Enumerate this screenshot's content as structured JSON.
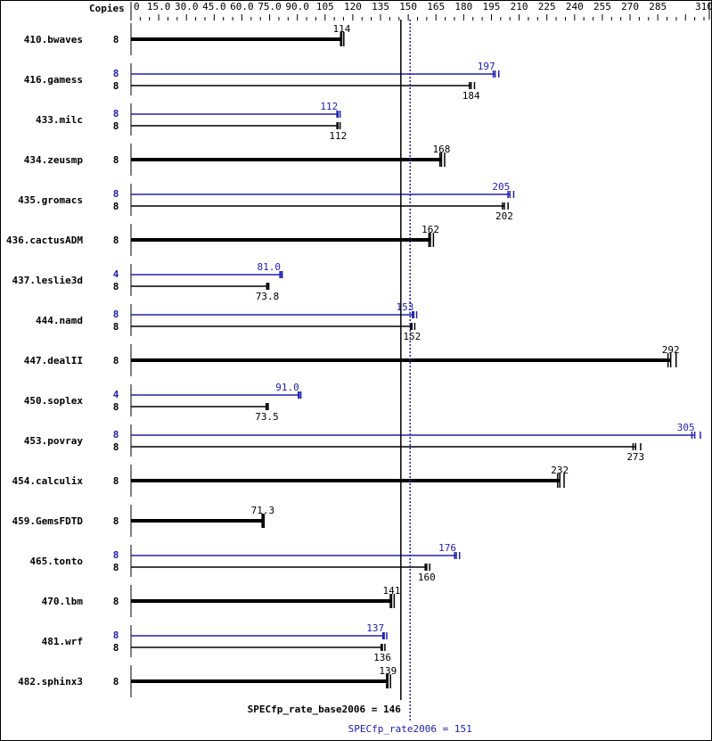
{
  "chart_data": {
    "type": "bar",
    "orientation": "horizontal",
    "copies_header": "Copies",
    "xlim": [
      0,
      310
    ],
    "x_ticks": [
      "0",
      "15.0",
      "30.0",
      "45.0",
      "60.0",
      "75.0",
      "90.0",
      "105",
      "120",
      "135",
      "150",
      "165",
      "180",
      "195",
      "210",
      "225",
      "240",
      "255",
      "270",
      "285",
      "310"
    ],
    "x_tick_values": [
      0,
      15,
      30,
      45,
      60,
      75,
      90,
      105,
      120,
      135,
      150,
      165,
      180,
      195,
      210,
      225,
      240,
      255,
      270,
      285,
      310
    ],
    "colors": {
      "base": "#000000",
      "peak": "#2020b0"
    },
    "benchmarks": [
      {
        "name": "410.bwaves",
        "base_copies": "8",
        "base": 114,
        "base_label": "114"
      },
      {
        "name": "416.gamess",
        "peak_copies": "8",
        "peak": 197,
        "peak_label": "197",
        "base_copies": "8",
        "base": 184,
        "base_label": "184"
      },
      {
        "name": "433.milc",
        "peak_copies": "8",
        "peak": 112,
        "peak_label": "112",
        "base_copies": "8",
        "base": 112,
        "base_label": "112"
      },
      {
        "name": "434.zeusmp",
        "base_copies": "8",
        "base": 168,
        "base_label": "168"
      },
      {
        "name": "435.gromacs",
        "peak_copies": "8",
        "peak": 205,
        "peak_label": "205",
        "base_copies": "8",
        "base": 202,
        "base_label": "202"
      },
      {
        "name": "436.cactusADM",
        "base_copies": "8",
        "base": 162,
        "base_label": "162"
      },
      {
        "name": "437.leslie3d",
        "peak_copies": "4",
        "peak": 81.0,
        "peak_label": "81.0",
        "base_copies": "8",
        "base": 73.8,
        "base_label": "73.8"
      },
      {
        "name": "444.namd",
        "peak_copies": "8",
        "peak": 153,
        "peak_label": "153",
        "base_copies": "8",
        "base": 152,
        "base_label": "152"
      },
      {
        "name": "447.dealII",
        "base_copies": "8",
        "base": 292,
        "base_label": "292"
      },
      {
        "name": "450.soplex",
        "peak_copies": "4",
        "peak": 91.0,
        "peak_label": "91.0",
        "base_copies": "8",
        "base": 73.5,
        "base_label": "73.5"
      },
      {
        "name": "453.povray",
        "peak_copies": "8",
        "peak": 305,
        "peak_label": "305",
        "base_copies": "8",
        "base": 273,
        "base_label": "273"
      },
      {
        "name": "454.calculix",
        "base_copies": "8",
        "base": 232,
        "base_label": "232"
      },
      {
        "name": "459.GemsFDTD",
        "base_copies": "8",
        "base": 71.3,
        "base_label": "71.3"
      },
      {
        "name": "465.tonto",
        "peak_copies": "8",
        "peak": 176,
        "peak_label": "176",
        "base_copies": "8",
        "base": 160,
        "base_label": "160"
      },
      {
        "name": "470.lbm",
        "base_copies": "8",
        "base": 141,
        "base_label": "141"
      },
      {
        "name": "481.wrf",
        "peak_copies": "8",
        "peak": 137,
        "peak_label": "137",
        "base_copies": "8",
        "base": 136,
        "base_label": "136"
      },
      {
        "name": "482.sphinx3",
        "base_copies": "8",
        "base": 139,
        "base_label": "139"
      }
    ],
    "base_summary": {
      "label": "SPECfp_rate_base2006 = 146",
      "value": 146
    },
    "peak_summary": {
      "label": "SPECfp_rate2006 = 151",
      "value": 151
    }
  }
}
